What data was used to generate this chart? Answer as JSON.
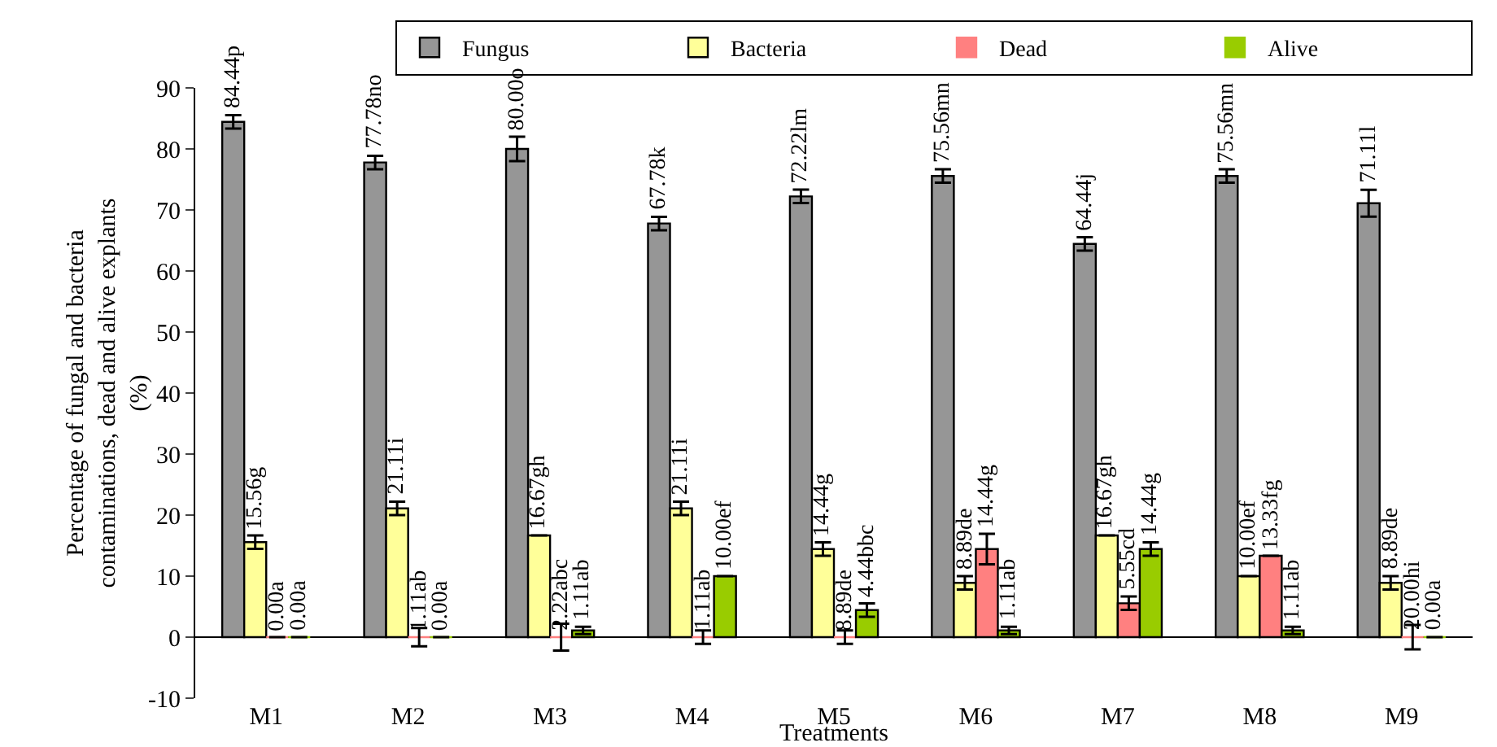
{
  "chart_data": {
    "type": "bar",
    "xlabel": "Treatments",
    "ylabel": "Percentage of fungal and bacteria contaminations, dead and alive explants (%)",
    "categories": [
      "M1",
      "M2",
      "M3",
      "M4",
      "M5",
      "M6",
      "M7",
      "M8",
      "M9"
    ],
    "series": [
      {
        "name": "Fungus",
        "color": "#969696",
        "values": [
          84.44,
          77.78,
          80.0,
          67.78,
          72.22,
          75.56,
          64.44,
          75.56,
          71.11
        ],
        "errors": [
          1.1,
          1.1,
          2,
          1.1,
          1.1,
          1.1,
          1.1,
          1.1,
          2.2
        ],
        "value_labels": [
          "84.44p",
          "77.78no",
          "80.00o",
          "67.78k",
          "72.22lm",
          "75.56mn",
          "64.44j",
          "75.56mn",
          "71.11l"
        ]
      },
      {
        "name": "Bacteria",
        "color": "#ffff99",
        "values": [
          15.56,
          21.11,
          16.67,
          21.11,
          14.44,
          8.89,
          16.67,
          10.0,
          8.89
        ],
        "errors": [
          1.1,
          1.1,
          null,
          1.1,
          1.1,
          1.1,
          null,
          null,
          1.1
        ],
        "value_labels": [
          "15.56g",
          "21.11i",
          "16.67gh",
          "21.11i",
          "14.44g",
          "8.89de",
          "16.67gh",
          "10.00ef",
          "8.89de"
        ]
      },
      {
        "name": "Dead",
        "color": "#ff8080",
        "values": [
          0,
          0,
          0,
          0,
          0,
          14.44,
          5.55,
          13.33,
          0
        ],
        "errors": [
          null,
          1.5,
          2.2,
          1.1,
          1.1,
          2.5,
          1.1,
          null,
          2
        ],
        "value_labels": [
          "0.00a",
          null,
          null,
          null,
          null,
          "14.44g",
          "5.55cd",
          "13.33fg",
          null
        ]
      },
      {
        "name": "Alive",
        "color": "#99cc00",
        "values": [
          0,
          0,
          1.11,
          10.0,
          4.44,
          1.11,
          14.44,
          1.11,
          0
        ],
        "errors": [
          null,
          null,
          0.6,
          null,
          1.1,
          0.6,
          1.1,
          0.6,
          null
        ],
        "value_labels": [
          "0.00a",
          "0.00a",
          "1.11ab",
          "10.00ef",
          "4.44bbc",
          "1.11ab",
          "14.44g",
          "1.11ab",
          "0.00a"
        ]
      }
    ],
    "annotations": [
      {
        "text": "1.11ab",
        "x": "M2",
        "y": 0
      },
      {
        "text": "2.22abc",
        "x": "M3",
        "y": 0
      },
      {
        "text": "1.11ab",
        "x": "M4",
        "y": 0
      },
      {
        "text": "8.89de",
        "x": "M5",
        "y": 0
      },
      {
        "text": "20.00hi",
        "x": "M9",
        "y": 0
      }
    ],
    "ylim": [
      -10,
      90
    ],
    "yticks": [
      -10,
      0,
      10,
      20,
      30,
      40,
      50,
      60,
      70,
      80,
      90
    ],
    "legend": "top right"
  }
}
